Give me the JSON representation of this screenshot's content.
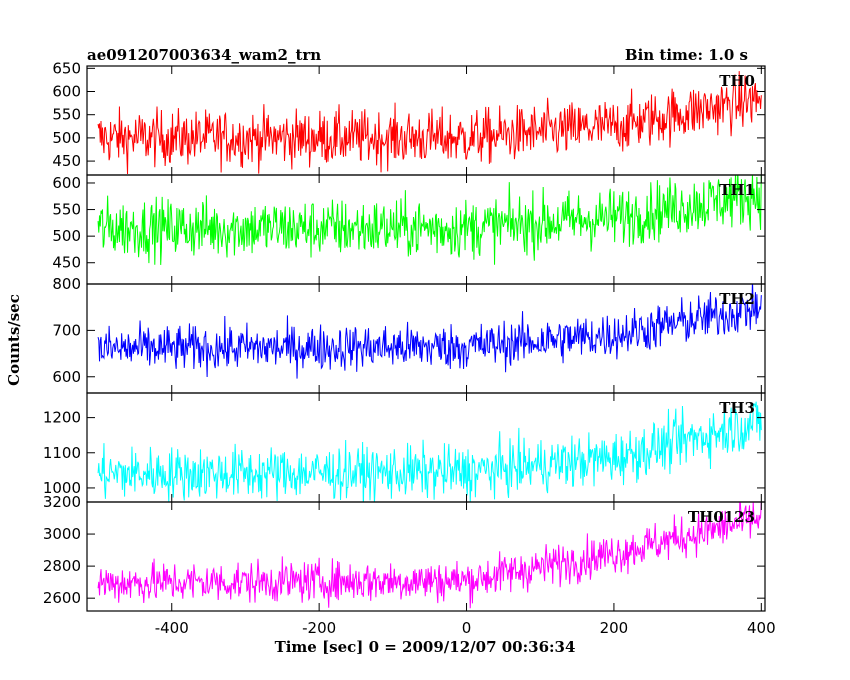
{
  "header": {
    "title_left": "ae091207003634_wam2_trn",
    "title_right": "Bin time: 1.0 s"
  },
  "chart_data": {
    "type": "line",
    "xlabel": "Time [sec] 0 = 2009/12/07 00:36:34",
    "ylabel": "Counts/sec",
    "xlim": [
      -515,
      405
    ],
    "x_ticks": [
      -400,
      -200,
      0,
      200,
      400
    ],
    "bin_time_s": 1.0,
    "series": [
      {
        "name": "TH0",
        "color": "#ff0000",
        "ylim": [
          420,
          655
        ],
        "y_ticks": [
          450,
          500,
          550,
          600,
          650
        ],
        "trend": [
          [
            -500,
            500
          ],
          [
            0,
            500
          ],
          [
            200,
            525
          ],
          [
            400,
            585
          ]
        ],
        "noise": 30
      },
      {
        "name": "TH1",
        "color": "#00ff00",
        "ylim": [
          410,
          615
        ],
        "y_ticks": [
          450,
          500,
          550,
          600
        ],
        "trend": [
          [
            -500,
            515
          ],
          [
            0,
            515
          ],
          [
            200,
            535
          ],
          [
            400,
            580
          ]
        ],
        "noise": 28
      },
      {
        "name": "TH2",
        "color": "#0000ff",
        "ylim": [
          565,
          800
        ],
        "y_ticks": [
          600,
          700,
          800
        ],
        "trend": [
          [
            -500,
            660
          ],
          [
            0,
            665
          ],
          [
            200,
            690
          ],
          [
            400,
            750
          ]
        ],
        "noise": 25
      },
      {
        "name": "TH3",
        "color": "#00ffff",
        "ylim": [
          960,
          1270
        ],
        "y_ticks": [
          1000,
          1100,
          1200
        ],
        "trend": [
          [
            -500,
            1040
          ],
          [
            0,
            1045
          ],
          [
            200,
            1085
          ],
          [
            400,
            1190
          ]
        ],
        "noise": 38
      },
      {
        "name": "TH0123",
        "color": "#ff00ff",
        "ylim": [
          2520,
          3200
        ],
        "y_ticks": [
          2600,
          2800,
          3000,
          3200
        ],
        "trend": [
          [
            -500,
            2695
          ],
          [
            0,
            2710
          ],
          [
            200,
            2880
          ],
          [
            400,
            3100
          ]
        ],
        "noise": 65
      }
    ]
  }
}
